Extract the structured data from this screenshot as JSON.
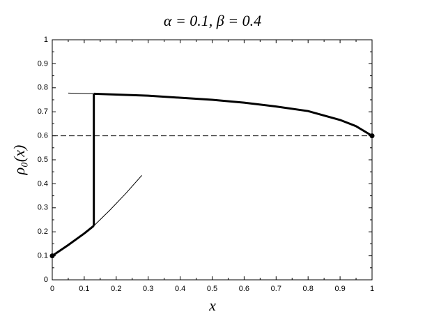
{
  "chart_data": {
    "type": "line",
    "title": "α = 0.1,  β = 0.4",
    "x_label": "x",
    "y_label": "ρ₀(x)",
    "xlim": [
      0,
      1
    ],
    "ylim": [
      0,
      1
    ],
    "xticks": [
      0,
      0.1,
      0.2,
      0.3,
      0.4,
      0.5,
      0.6,
      0.7,
      0.8,
      0.9,
      1
    ],
    "yticks": [
      0,
      0.1,
      0.2,
      0.3,
      0.4,
      0.5,
      0.6,
      0.7,
      0.8,
      0.9,
      1
    ],
    "series": [
      {
        "color": "#000000",
        "width": 3,
        "x": [
          0,
          0.05,
          0.1,
          0.13
        ],
        "values": [
          0.1,
          0.145,
          0.193,
          0.225
        ]
      },
      {
        "color": "#000000",
        "width": 1,
        "x": [
          0.13,
          0.18,
          0.23,
          0.28
        ],
        "values": [
          0.225,
          0.29,
          0.36,
          0.435
        ]
      },
      {
        "color": "#000000",
        "width": 3,
        "x": [
          0.13,
          0.13
        ],
        "values": [
          0.225,
          0.775
        ]
      },
      {
        "color": "#000000",
        "width": 3,
        "x": [
          0.13,
          0.3,
          0.5,
          0.6,
          0.7,
          0.8,
          0.9,
          0.95,
          1
        ],
        "values": [
          0.775,
          0.767,
          0.75,
          0.738,
          0.722,
          0.703,
          0.666,
          0.64,
          0.6
        ]
      },
      {
        "color": "#000000",
        "width": 1,
        "x": [
          0.05,
          0.13
        ],
        "values": [
          0.778,
          0.775
        ]
      },
      {
        "color": "#000000",
        "width": 1,
        "dash": true,
        "x": [
          0,
          1
        ],
        "values": [
          0.6,
          0.6
        ]
      },
      {
        "color": "#000000",
        "marker": true,
        "x": [
          0,
          1
        ],
        "values": [
          0.1,
          0.6
        ]
      }
    ]
  }
}
